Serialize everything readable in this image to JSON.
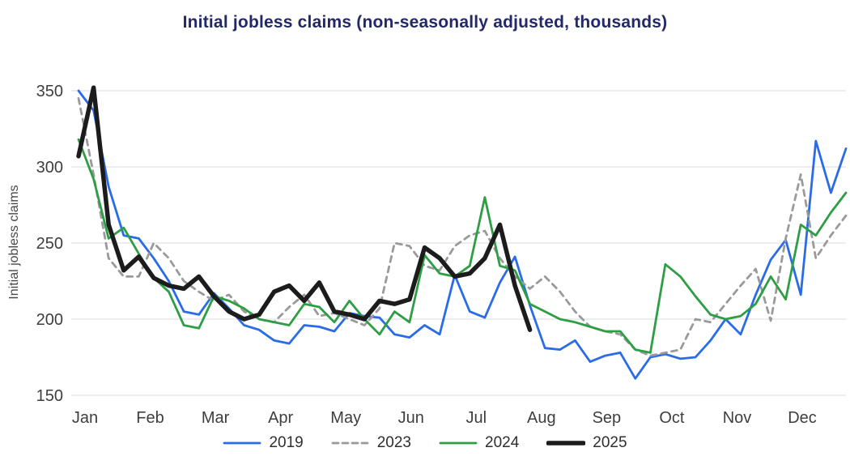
{
  "chart_data": {
    "type": "line",
    "title": "Initial jobless claims (non-seasonally adjusted, thousands)",
    "xlabel": "",
    "ylabel": "Initial jobless claims",
    "ylim": [
      150,
      350
    ],
    "yticks": [
      150,
      200,
      250,
      300,
      350
    ],
    "categories": [
      "Jan",
      "Feb",
      "Mar",
      "Apr",
      "May",
      "Jun",
      "Jul",
      "Aug",
      "Sep",
      "Oct",
      "Nov",
      "Dec"
    ],
    "x_unit": "week",
    "grid": "horizontal",
    "legend_position": "bottom",
    "colors": {
      "title": "#232968",
      "axis_text": "#3e3e3e",
      "gridline": "#d8dbe0"
    },
    "series": [
      {
        "name": "2019",
        "color": "#2a6ce8",
        "style": "solid",
        "width": 2.8,
        "values": [
          350,
          337,
          287,
          255,
          253,
          240,
          225,
          205,
          203,
          217,
          207,
          196,
          193,
          186,
          184,
          196,
          195,
          192,
          204,
          202,
          201,
          190,
          188,
          196,
          190,
          229,
          205,
          201,
          224,
          241,
          209,
          181,
          180,
          186,
          172,
          176,
          178,
          161,
          175,
          177,
          174,
          175,
          186,
          200,
          190,
          216,
          239,
          252,
          216,
          317,
          283,
          312
        ]
      },
      {
        "name": "2023",
        "color": "#9a9a9a",
        "style": "dashed",
        "width": 2.8,
        "values": [
          345,
          295,
          240,
          228,
          228,
          250,
          240,
          225,
          218,
          212,
          216,
          205,
          200,
          198,
          208,
          216,
          202,
          204,
          200,
          196,
          207,
          250,
          248,
          235,
          232,
          248,
          255,
          258,
          240,
          228,
          220,
          228,
          218,
          205,
          195,
          192,
          190,
          180,
          176,
          178,
          180,
          200,
          198,
          210,
          222,
          233,
          199,
          253,
          295,
          240,
          255,
          268
        ]
      },
      {
        "name": "2024",
        "color": "#2e9e44",
        "style": "solid",
        "width": 2.8,
        "values": [
          318,
          292,
          253,
          260,
          243,
          227,
          218,
          196,
          194,
          215,
          212,
          207,
          200,
          198,
          196,
          210,
          208,
          198,
          212,
          200,
          190,
          205,
          198,
          242,
          230,
          228,
          235,
          280,
          235,
          232,
          210,
          205,
          200,
          198,
          195,
          192,
          192,
          180,
          178,
          236,
          228,
          215,
          203,
          200,
          202,
          210,
          228,
          213,
          262,
          255,
          270,
          283
        ]
      },
      {
        "name": "2025",
        "color": "#1c1c1c",
        "style": "solid",
        "width": 5.5,
        "values": [
          307,
          352,
          262,
          232,
          241,
          227,
          222,
          220,
          228,
          215,
          205,
          200,
          203,
          218,
          222,
          212,
          224,
          205,
          203,
          200,
          212,
          210,
          213,
          247,
          240,
          228,
          230,
          240,
          262,
          222,
          193
        ]
      }
    ]
  }
}
